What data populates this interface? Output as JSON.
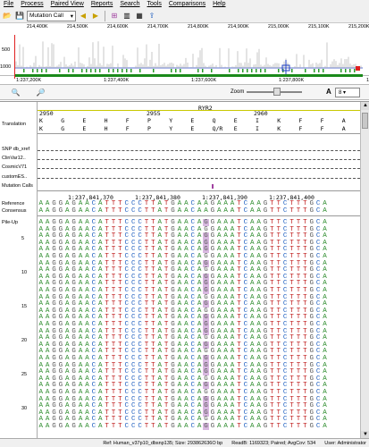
{
  "menu": [
    "File",
    "Process",
    "Paired View",
    "Reports",
    "Search",
    "Tools",
    "Comparisons",
    "Help"
  ],
  "toolbar": {
    "view_select": "Mutation Call",
    "icons": [
      "folder-open-icon",
      "save-icon",
      "back-icon",
      "forward-icon",
      "filter-icon",
      "columns-icon",
      "grid-icon",
      "export-icon"
    ]
  },
  "overview": {
    "ticks": [
      "214,400K",
      "214,500K",
      "214,600K",
      "214,700K",
      "214,800K",
      "214,900K",
      "215,000K",
      "215,100K",
      "215,200K"
    ],
    "y_top": "500",
    "y_bottom": "1000"
  },
  "nav_ticks": [
    "1:237,200K",
    "1:237,400K",
    "1:237,600K",
    "1:237,800K",
    "1:238,"
  ],
  "zoom": {
    "label": "Zoom",
    "font_label": "A",
    "font_size": "8"
  },
  "tracks": {
    "translation_label": "Translation",
    "gene": "RYR2",
    "codon_positions": [
      "2950",
      "2955",
      "2960"
    ],
    "aa_row1": [
      "K",
      "G",
      "E",
      "H",
      "F",
      "P",
      "Y",
      "E",
      "Q",
      "E",
      "I",
      "K",
      "F",
      "F",
      "A"
    ],
    "aa_row2": [
      "K",
      "G",
      "E",
      "H",
      "F",
      "P",
      "Y",
      "E",
      "Q/R",
      "E",
      "I",
      "K",
      "F",
      "F",
      "A"
    ],
    "annotation_labels": [
      "SNP db_xref",
      "ClinVar12..",
      "CosmicV71",
      "customES..",
      "Mutation Calls"
    ],
    "coords": [
      "1:237,841,370",
      "1:237,841,380",
      "1:237,841,390",
      "1:237,841,400"
    ],
    "reference_label": "Reference",
    "consensus_label": "Consensus",
    "pileup_label": "Pile-Up",
    "reference_seq": "AAGGAGAACATTTCCCTTATGAACAAGAAATCAAGTTCTTTGCA",
    "consensus_seq": "AAGGAGAACATTTCCCTTATGAACAAGAAATCAAGTTCTTTGCA",
    "read_seq": "AAGGAGAACATTTCCCTTATGAACAGGAAATCAAGTTCTTTGCA",
    "pileup_numbers": [
      "5",
      "10",
      "15",
      "20",
      "25",
      "30"
    ],
    "mutation_index": 25
  },
  "status": {
    "reference": "Ref: Human_v37p10_dbsnp135; Size: 293862636O bp",
    "reads": "ReadB: 1169323; Paired; AvgCov: 534",
    "user": "User: Administrator"
  },
  "colors": {
    "A": "#2a8a2a",
    "C": "#2060c0",
    "G": "#555555",
    "T": "#c02020",
    "highlight": "#d8b8e0"
  }
}
